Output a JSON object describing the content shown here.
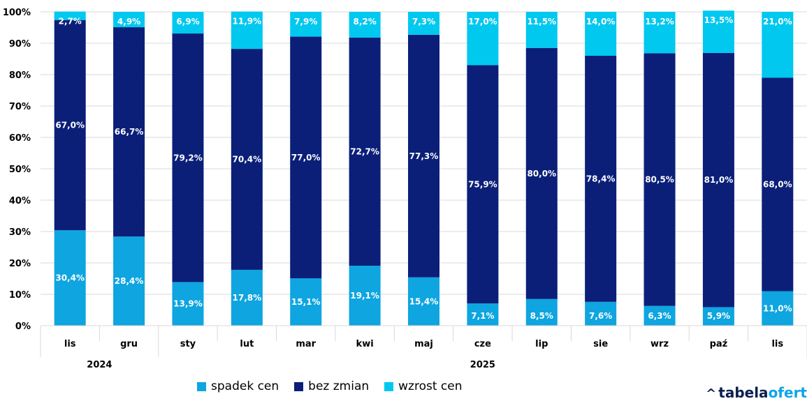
{
  "chart_data": {
    "type": "bar",
    "stacked": true,
    "categories": [
      "lis",
      "gru",
      "sty",
      "lut",
      "mar",
      "kwi",
      "maj",
      "cze",
      "lip",
      "sie",
      "wrz",
      "paź",
      "lis"
    ],
    "year_groups": [
      {
        "label": "2024",
        "start": 0,
        "end": 1
      },
      {
        "label": "2025",
        "start": 2,
        "end": 12
      }
    ],
    "series": [
      {
        "name": "spadek cen",
        "color": "#0ea5e0",
        "values": [
          30.4,
          28.4,
          13.9,
          17.8,
          15.1,
          19.1,
          15.4,
          7.1,
          8.5,
          7.6,
          6.3,
          5.9,
          11.0
        ],
        "labels": [
          "30,4%",
          "28,4%",
          "13,9%",
          "17,8%",
          "15,1%",
          "19,1%",
          "15,4%",
          "7,1%",
          "8,5%",
          "7,6%",
          "6,3%",
          "5,9%",
          "11,0%"
        ]
      },
      {
        "name": "bez zmian",
        "color": "#0b1f78",
        "values": [
          67.0,
          66.7,
          79.2,
          70.4,
          77.0,
          72.7,
          77.3,
          75.9,
          80.0,
          78.4,
          80.5,
          81.0,
          68.0
        ],
        "labels": [
          "67,0%",
          "66,7%",
          "79,2%",
          "70,4%",
          "77,0%",
          "72,7%",
          "77,3%",
          "75,9%",
          "80,0%",
          "78,4%",
          "80,5%",
          "81,0%",
          "68,0%"
        ]
      },
      {
        "name": "wzrost cen",
        "color": "#00c8ef",
        "values": [
          2.7,
          4.9,
          6.9,
          11.9,
          7.9,
          8.2,
          7.3,
          17.0,
          11.5,
          14.0,
          13.2,
          13.5,
          21.0
        ],
        "labels": [
          "2,7%",
          "4,9%",
          "6,9%",
          "11,9%",
          "7,9%",
          "8,2%",
          "7,3%",
          "17,0%",
          "11,5%",
          "14,0%",
          "13,2%",
          "13,5%",
          "21,0%"
        ]
      }
    ],
    "y_ticks": [
      "0%",
      "10%",
      "20%",
      "30%",
      "40%",
      "50%",
      "60%",
      "70%",
      "80%",
      "90%",
      "100%"
    ],
    "ylim": [
      0,
      100
    ],
    "title": "",
    "xlabel": "",
    "ylabel": "",
    "grid": true,
    "legend_position": "bottom"
  },
  "branding": {
    "logo_prefix": "tabela",
    "logo_suffix": "ofert"
  }
}
